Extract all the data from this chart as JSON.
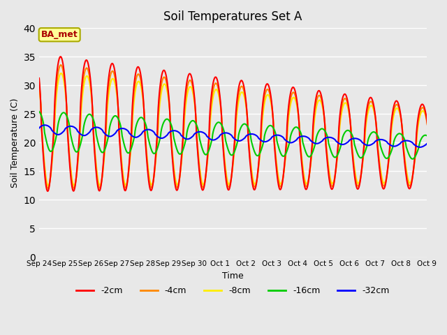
{
  "title": "Soil Temperatures Set A",
  "xlabel": "Time",
  "ylabel": "Soil Temperature (C)",
  "ylim": [
    0,
    40
  ],
  "yticks": [
    0,
    5,
    10,
    15,
    20,
    25,
    30,
    35,
    40
  ],
  "plot_bg_color": "#e8e8e8",
  "fig_bg_color": "#e8e8e8",
  "colors": {
    "-2cm": "#ff0000",
    "-4cm": "#ff8800",
    "-8cm": "#ffee00",
    "-16cm": "#00cc00",
    "-32cm": "#0000ff"
  },
  "legend_label": "BA_met",
  "annotation_box_facecolor": "#ffff99",
  "annotation_text_color": "#aa0000",
  "annotation_edge_color": "#aaaa00",
  "grid_color": "#ffffff",
  "tick_label_fontsize": 7.5,
  "title_fontsize": 12,
  "axis_label_fontsize": 9,
  "line_width": 1.5,
  "tick_labels": [
    "Sep 24",
    "Sep 25",
    "Sep 26",
    "Sep 27",
    "Sep 28",
    "Sep 29",
    "Sep 30",
    "Oct 1",
    "Oct 2",
    "Oct 3",
    "Oct 4",
    "Oct 5",
    "Oct 6",
    "Oct 7",
    "Oct 8",
    "Oct 9"
  ]
}
